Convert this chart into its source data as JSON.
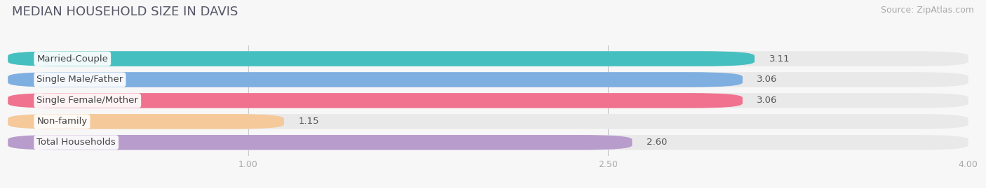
{
  "title": "MEDIAN HOUSEHOLD SIZE IN DAVIS",
  "source": "Source: ZipAtlas.com",
  "categories": [
    "Married-Couple",
    "Single Male/Father",
    "Single Female/Mother",
    "Non-family",
    "Total Households"
  ],
  "values": [
    3.11,
    3.06,
    3.06,
    1.15,
    2.6
  ],
  "bar_colors": [
    "#45bfc0",
    "#7faee0",
    "#f0728f",
    "#f5c99a",
    "#b89dcc"
  ],
  "value_labels": [
    "3.11",
    "3.06",
    "3.06",
    "1.15",
    "2.60"
  ],
  "xlim_min": 0.0,
  "xlim_max": 4.0,
  "xticks": [
    1.0,
    2.5,
    4.0
  ],
  "xtick_labels": [
    "1.00",
    "2.50",
    "4.00"
  ],
  "bar_height": 0.72,
  "background_color": "#f7f7f7",
  "bar_background_color": "#e9e9e9",
  "title_fontsize": 13,
  "source_fontsize": 9,
  "label_fontsize": 9.5,
  "value_fontsize": 9.5
}
